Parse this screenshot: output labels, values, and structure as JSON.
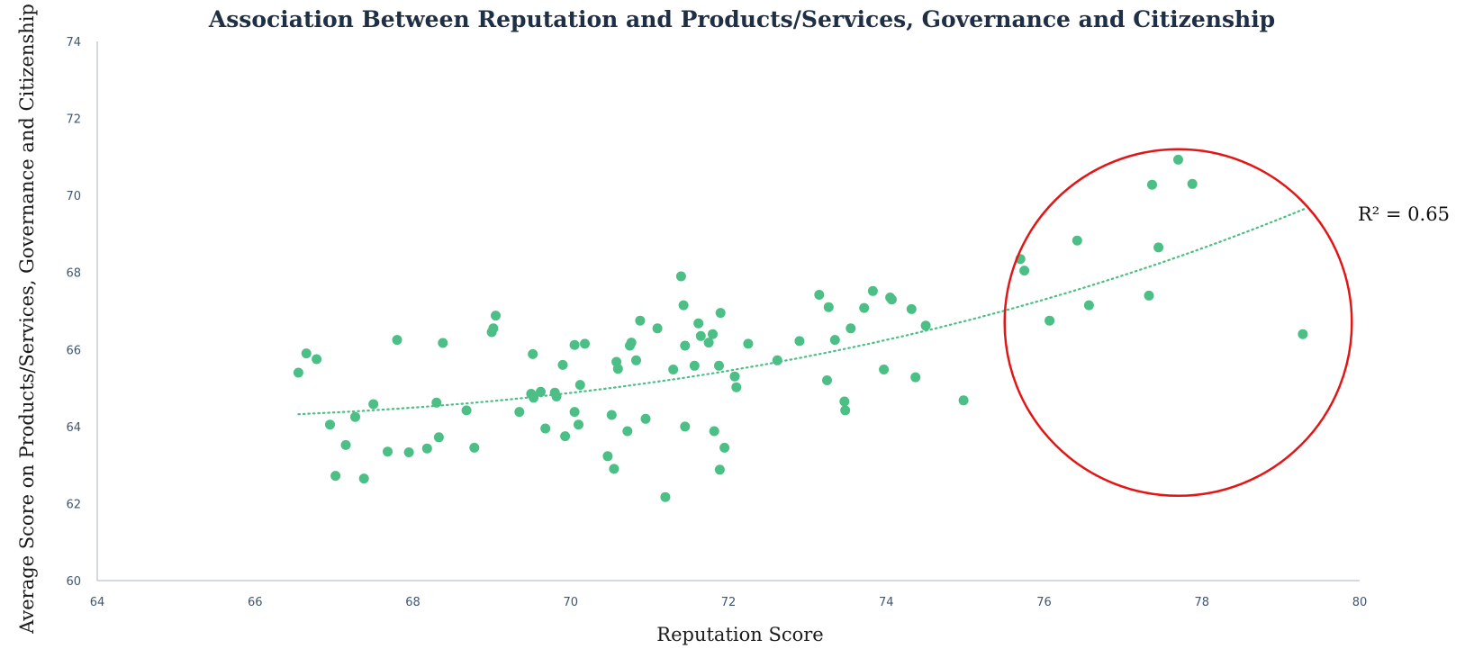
{
  "chart_data": {
    "type": "scatter",
    "title": "Association Between Reputation and Products/Services, Governance and Citizenship",
    "xlabel": "Reputation Score",
    "ylabel": "Average Score on Products/Services, Governance and Citizenship",
    "xlim": [
      64,
      80
    ],
    "ylim": [
      60,
      74
    ],
    "x_ticks": [
      "64",
      "66",
      "68",
      "70",
      "72",
      "74",
      "76",
      "78",
      "80"
    ],
    "y_ticks": [
      "60",
      "62",
      "64",
      "66",
      "68",
      "70",
      "72",
      "74"
    ],
    "grid": false,
    "point_color": "#4bbf85",
    "trendline": {
      "type": "polynomial",
      "style": "dotted",
      "color": "#4bbf85",
      "x_range": [
        66.55,
        79.3
      ],
      "points": [
        [
          66.55,
          64.32
        ],
        [
          72,
          65.45
        ],
        [
          75,
          66.74
        ],
        [
          79.3,
          69.65
        ]
      ]
    },
    "r_squared_label": "R² = 0.65",
    "highlight_circle": {
      "color": "#e31515",
      "center": [
        77.7,
        66.7
      ],
      "rx": 2.2,
      "ry": 4.5
    },
    "points": [
      [
        66.55,
        65.4
      ],
      [
        66.65,
        65.9
      ],
      [
        66.78,
        65.75
      ],
      [
        66.95,
        64.05
      ],
      [
        67.02,
        62.72
      ],
      [
        67.15,
        63.52
      ],
      [
        67.27,
        64.25
      ],
      [
        67.38,
        62.65
      ],
      [
        67.5,
        64.58
      ],
      [
        67.68,
        63.35
      ],
      [
        67.8,
        66.25
      ],
      [
        67.95,
        63.33
      ],
      [
        68.18,
        63.43
      ],
      [
        68.3,
        64.62
      ],
      [
        68.33,
        63.72
      ],
      [
        68.38,
        66.17
      ],
      [
        68.68,
        64.42
      ],
      [
        68.78,
        63.45
      ],
      [
        69.0,
        66.45
      ],
      [
        69.02,
        66.55
      ],
      [
        69.05,
        66.88
      ],
      [
        69.35,
        64.38
      ],
      [
        69.5,
        64.85
      ],
      [
        69.52,
        65.88
      ],
      [
        69.53,
        64.75
      ],
      [
        69.62,
        64.9
      ],
      [
        69.68,
        63.95
      ],
      [
        69.8,
        64.88
      ],
      [
        69.82,
        64.78
      ],
      [
        69.9,
        65.6
      ],
      [
        69.93,
        63.75
      ],
      [
        70.05,
        66.12
      ],
      [
        70.05,
        64.38
      ],
      [
        70.1,
        64.05
      ],
      [
        70.12,
        65.08
      ],
      [
        70.18,
        66.15
      ],
      [
        70.47,
        63.23
      ],
      [
        70.52,
        64.3
      ],
      [
        70.55,
        62.9
      ],
      [
        70.58,
        65.68
      ],
      [
        70.6,
        65.5
      ],
      [
        70.72,
        63.88
      ],
      [
        70.75,
        66.1
      ],
      [
        70.77,
        66.18
      ],
      [
        70.83,
        65.72
      ],
      [
        70.88,
        66.75
      ],
      [
        70.95,
        64.2
      ],
      [
        71.1,
        66.55
      ],
      [
        71.2,
        62.17
      ],
      [
        71.3,
        65.48
      ],
      [
        71.4,
        67.9
      ],
      [
        71.43,
        67.15
      ],
      [
        71.45,
        64.0
      ],
      [
        71.45,
        66.1
      ],
      [
        71.57,
        65.58
      ],
      [
        71.62,
        66.68
      ],
      [
        71.65,
        66.35
      ],
      [
        71.75,
        66.18
      ],
      [
        71.8,
        66.4
      ],
      [
        71.82,
        63.88
      ],
      [
        71.88,
        65.58
      ],
      [
        71.89,
        62.88
      ],
      [
        71.9,
        66.95
      ],
      [
        71.95,
        63.45
      ],
      [
        72.08,
        65.3
      ],
      [
        72.1,
        65.02
      ],
      [
        72.25,
        66.15
      ],
      [
        72.62,
        65.72
      ],
      [
        72.9,
        66.22
      ],
      [
        73.15,
        67.42
      ],
      [
        73.25,
        65.2
      ],
      [
        73.27,
        67.1
      ],
      [
        73.35,
        66.25
      ],
      [
        73.47,
        64.65
      ],
      [
        73.48,
        64.42
      ],
      [
        73.55,
        66.55
      ],
      [
        73.72,
        67.08
      ],
      [
        73.83,
        67.52
      ],
      [
        73.97,
        65.48
      ],
      [
        74.05,
        67.35
      ],
      [
        74.07,
        67.3
      ],
      [
        74.32,
        67.05
      ],
      [
        74.37,
        65.28
      ],
      [
        74.5,
        66.62
      ],
      [
        74.98,
        64.68
      ],
      [
        75.7,
        68.35
      ],
      [
        75.75,
        68.05
      ],
      [
        76.07,
        66.75
      ],
      [
        76.42,
        68.83
      ],
      [
        76.57,
        67.15
      ],
      [
        77.33,
        67.4
      ],
      [
        77.37,
        70.28
      ],
      [
        77.45,
        68.65
      ],
      [
        77.7,
        70.93
      ],
      [
        77.88,
        70.3
      ],
      [
        79.28,
        66.4
      ]
    ]
  }
}
